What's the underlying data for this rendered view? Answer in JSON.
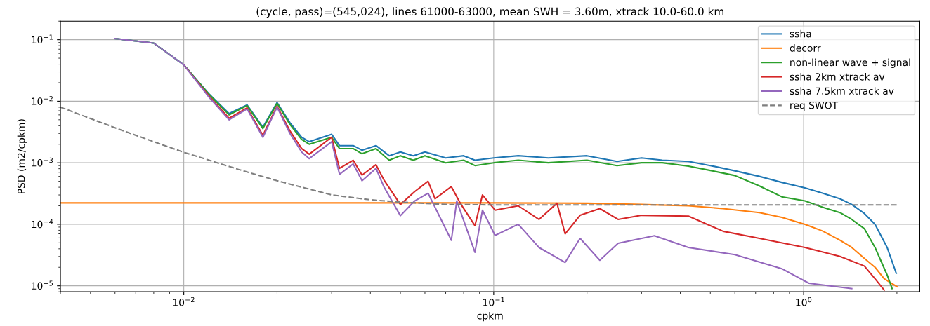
{
  "chart_data": {
    "type": "line",
    "title": "(cycle, pass)=(545,024), lines 61000-63000, mean SWH = 3.60m, xtrack 10.0-60.0 km",
    "xlabel": "cpkm",
    "ylabel": "PSD (m2/cpkm)",
    "log": "xy",
    "grid": true,
    "legend": "top right",
    "xlim": [
      0.004,
      2.37
    ],
    "ylim": [
      8e-06,
      0.2
    ],
    "xticks": [
      {
        "value": 0.01,
        "label": "10$^{−2}$"
      },
      {
        "value": 0.1,
        "label": "10$^{−1}$"
      },
      {
        "value": 1,
        "label": "10$^{0}$"
      }
    ],
    "yticks": [
      {
        "value": 1e-05,
        "label": "10$^{−5}$"
      },
      {
        "value": 0.0001,
        "label": "10$^{−4}$"
      },
      {
        "value": 0.001,
        "label": "10$^{−3}$"
      },
      {
        "value": 0.01,
        "label": "10$^{−2}$"
      },
      {
        "value": 0.1,
        "label": "10$^{−1}$"
      }
    ],
    "series": [
      {
        "name": "ssha",
        "color": "#1f77b4",
        "x": [
          0.006,
          0.008,
          0.01,
          0.012,
          0.014,
          0.016,
          0.018,
          0.02,
          0.022,
          0.024,
          0.0254,
          0.03,
          0.0318,
          0.0352,
          0.0376,
          0.0417,
          0.046,
          0.05,
          0.055,
          0.06,
          0.07,
          0.08,
          0.087,
          0.1,
          0.12,
          0.15,
          0.2,
          0.25,
          0.3,
          0.35,
          0.425,
          0.5,
          0.6,
          0.72,
          0.85,
          1.01,
          1.15,
          1.31,
          1.43,
          1.57,
          1.7,
          1.86,
          1.99
        ],
        "values": [
          0.104,
          0.088,
          0.039,
          0.0135,
          0.0063,
          0.0087,
          0.0038,
          0.0095,
          0.0045,
          0.0026,
          0.0022,
          0.0029,
          0.0019,
          0.0019,
          0.0016,
          0.0019,
          0.0013,
          0.0015,
          0.0013,
          0.0015,
          0.0012,
          0.0013,
          0.0011,
          0.0012,
          0.0013,
          0.0012,
          0.0013,
          0.00105,
          0.0012,
          0.0011,
          0.00105,
          0.0009,
          0.00074,
          0.0006,
          0.00048,
          0.00039,
          0.00032,
          0.00026,
          0.00021,
          0.00015,
          0.0001,
          4.2e-05,
          1.6e-05
        ]
      },
      {
        "name": "decorr",
        "color": "#ff7f0e",
        "x": [
          0.004,
          0.1,
          0.2,
          0.3,
          0.425,
          0.55,
          0.72,
          0.85,
          1.01,
          1.15,
          1.31,
          1.43,
          1.57,
          1.7,
          1.82,
          2.0
        ],
        "values": [
          0.000223,
          0.000223,
          0.00022,
          0.00021,
          0.0002,
          0.00018,
          0.000155,
          0.00013,
          0.0001,
          7.8e-05,
          5.5e-05,
          4.2e-05,
          2.8e-05,
          2e-05,
          1.3e-05,
          9.7e-06
        ]
      },
      {
        "name": "non-linear wave + signal",
        "color": "#2ca02c",
        "x": [
          0.006,
          0.008,
          0.01,
          0.012,
          0.014,
          0.016,
          0.018,
          0.02,
          0.022,
          0.024,
          0.0254,
          0.03,
          0.0318,
          0.0352,
          0.0376,
          0.0417,
          0.046,
          0.05,
          0.055,
          0.06,
          0.07,
          0.08,
          0.087,
          0.1,
          0.12,
          0.15,
          0.2,
          0.25,
          0.3,
          0.35,
          0.425,
          0.5,
          0.6,
          0.72,
          0.85,
          1.01,
          1.15,
          1.31,
          1.43,
          1.57,
          1.7,
          1.86,
          1.93
        ],
        "values": [
          0.104,
          0.088,
          0.039,
          0.0133,
          0.006,
          0.0085,
          0.0036,
          0.0092,
          0.0042,
          0.0024,
          0.002,
          0.0026,
          0.0017,
          0.0017,
          0.0014,
          0.0017,
          0.0011,
          0.0013,
          0.0011,
          0.0013,
          0.001,
          0.0011,
          0.0009,
          0.001,
          0.0011,
          0.001,
          0.0011,
          0.0009,
          0.001,
          0.001,
          0.00088,
          0.00075,
          0.00062,
          0.00042,
          0.00028,
          0.00024,
          0.00019,
          0.000155,
          0.00012,
          8.5e-05,
          4.2e-05,
          1.5e-05,
          9e-06
        ]
      },
      {
        "name": "ssha 2km xtrack av",
        "color": "#d62728",
        "x": [
          0.01,
          0.012,
          0.014,
          0.016,
          0.018,
          0.02,
          0.022,
          0.024,
          0.0254,
          0.03,
          0.0318,
          0.0352,
          0.0376,
          0.0417,
          0.0443,
          0.05,
          0.0556,
          0.0614,
          0.0647,
          0.073,
          0.078,
          0.087,
          0.092,
          0.101,
          0.12,
          0.14,
          0.16,
          0.17,
          0.19,
          0.22,
          0.252,
          0.3,
          0.425,
          0.55,
          0.72,
          1.01,
          1.31,
          1.57,
          1.7,
          1.82
        ],
        "values": [
          0.039,
          0.0125,
          0.0053,
          0.0078,
          0.0028,
          0.0083,
          0.0033,
          0.0017,
          0.00138,
          0.0026,
          0.00081,
          0.0011,
          0.00063,
          0.00093,
          0.00052,
          0.00021,
          0.00034,
          0.0005,
          0.00026,
          0.00041,
          0.00022,
          9.5e-05,
          0.0003,
          0.00017,
          0.0002,
          0.00012,
          0.00022,
          7e-05,
          0.00014,
          0.00018,
          0.00012,
          0.00014,
          0.000136,
          7.7e-05,
          5.9e-05,
          4.2e-05,
          3e-05,
          2.1e-05,
          1.3e-05,
          8.5e-06
        ]
      },
      {
        "name": "ssha 7.5km xtrack av",
        "color": "#9467bd",
        "x": [
          0.006,
          0.008,
          0.01,
          0.012,
          0.014,
          0.016,
          0.018,
          0.02,
          0.022,
          0.024,
          0.0254,
          0.03,
          0.0318,
          0.0352,
          0.0376,
          0.0417,
          0.0443,
          0.05,
          0.0556,
          0.0614,
          0.073,
          0.076,
          0.087,
          0.092,
          0.101,
          0.12,
          0.14,
          0.17,
          0.19,
          0.22,
          0.252,
          0.33,
          0.425,
          0.6,
          0.85,
          1.04,
          1.43
        ],
        "values": [
          0.104,
          0.088,
          0.039,
          0.012,
          0.005,
          0.0075,
          0.0026,
          0.008,
          0.003,
          0.0015,
          0.00117,
          0.0022,
          0.00065,
          0.00096,
          0.00051,
          0.00081,
          0.0004,
          0.000138,
          0.00024,
          0.00032,
          5.5e-05,
          0.00024,
          3.5e-05,
          0.00017,
          6.6e-05,
          0.0001,
          4.2e-05,
          2.4e-05,
          5.9e-05,
          2.6e-05,
          4.9e-05,
          6.5e-05,
          4.2e-05,
          3.2e-05,
          1.9e-05,
          1.1e-05,
          9e-06
        ]
      },
      {
        "name": "req SWOT",
        "color": "#7f7f7f",
        "line_style": "dashed",
        "x": [
          0.004,
          0.006,
          0.008,
          0.01,
          0.015,
          0.02,
          0.03,
          0.04,
          0.05,
          0.07,
          0.1,
          2.0
        ],
        "values": [
          0.008,
          0.0037,
          0.0022,
          0.00148,
          0.00078,
          0.00051,
          0.0003,
          0.00025,
          0.00023,
          0.00021,
          0.000207,
          0.000207
        ]
      }
    ]
  }
}
